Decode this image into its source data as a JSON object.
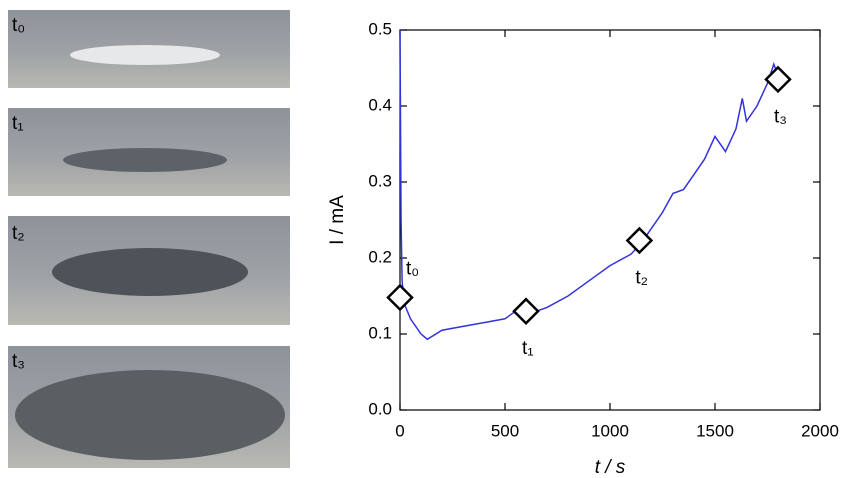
{
  "chart_data": {
    "type": "line",
    "x": [
      0,
      5,
      10,
      20,
      50,
      100,
      130,
      200,
      300,
      400,
      500,
      550,
      600,
      700,
      800,
      900,
      1000,
      1100,
      1150,
      1200,
      1250,
      1300,
      1350,
      1400,
      1450,
      1500,
      1550,
      1600,
      1630,
      1650,
      1700,
      1750,
      1780,
      1800
    ],
    "series": [
      {
        "color": "#3333dd",
        "values": [
          0.5,
          0.25,
          0.17,
          0.14,
          0.12,
          0.1,
          0.093,
          0.105,
          0.11,
          0.115,
          0.12,
          0.13,
          0.125,
          0.135,
          0.15,
          0.17,
          0.19,
          0.205,
          0.22,
          0.24,
          0.26,
          0.285,
          0.29,
          0.31,
          0.33,
          0.36,
          0.34,
          0.37,
          0.41,
          0.38,
          0.4,
          0.43,
          0.455,
          0.44
        ]
      }
    ],
    "markers": [
      {
        "label": "t₀",
        "x": 0,
        "y": 0.148
      },
      {
        "label": "t₁",
        "x": 600,
        "y": 0.13
      },
      {
        "label": "t₂",
        "x": 1140,
        "y": 0.223
      },
      {
        "label": "t₃",
        "x": 1800,
        "y": 0.435
      }
    ],
    "x_label": "t / s",
    "y_label": "I / mA",
    "xlim": [
      0,
      2000
    ],
    "xticks": [
      0,
      500,
      1000,
      1500,
      2000
    ],
    "ylim": [
      0,
      0.5
    ],
    "yticks": [
      {
        "value": 0,
        "label": "0.0"
      },
      0.1,
      0.2,
      0.3,
      0.4,
      0.5
    ]
  },
  "photos": [
    {
      "label": "t₀"
    },
    {
      "label": "t₁"
    },
    {
      "label": "t₂"
    },
    {
      "label": "t₃"
    }
  ]
}
